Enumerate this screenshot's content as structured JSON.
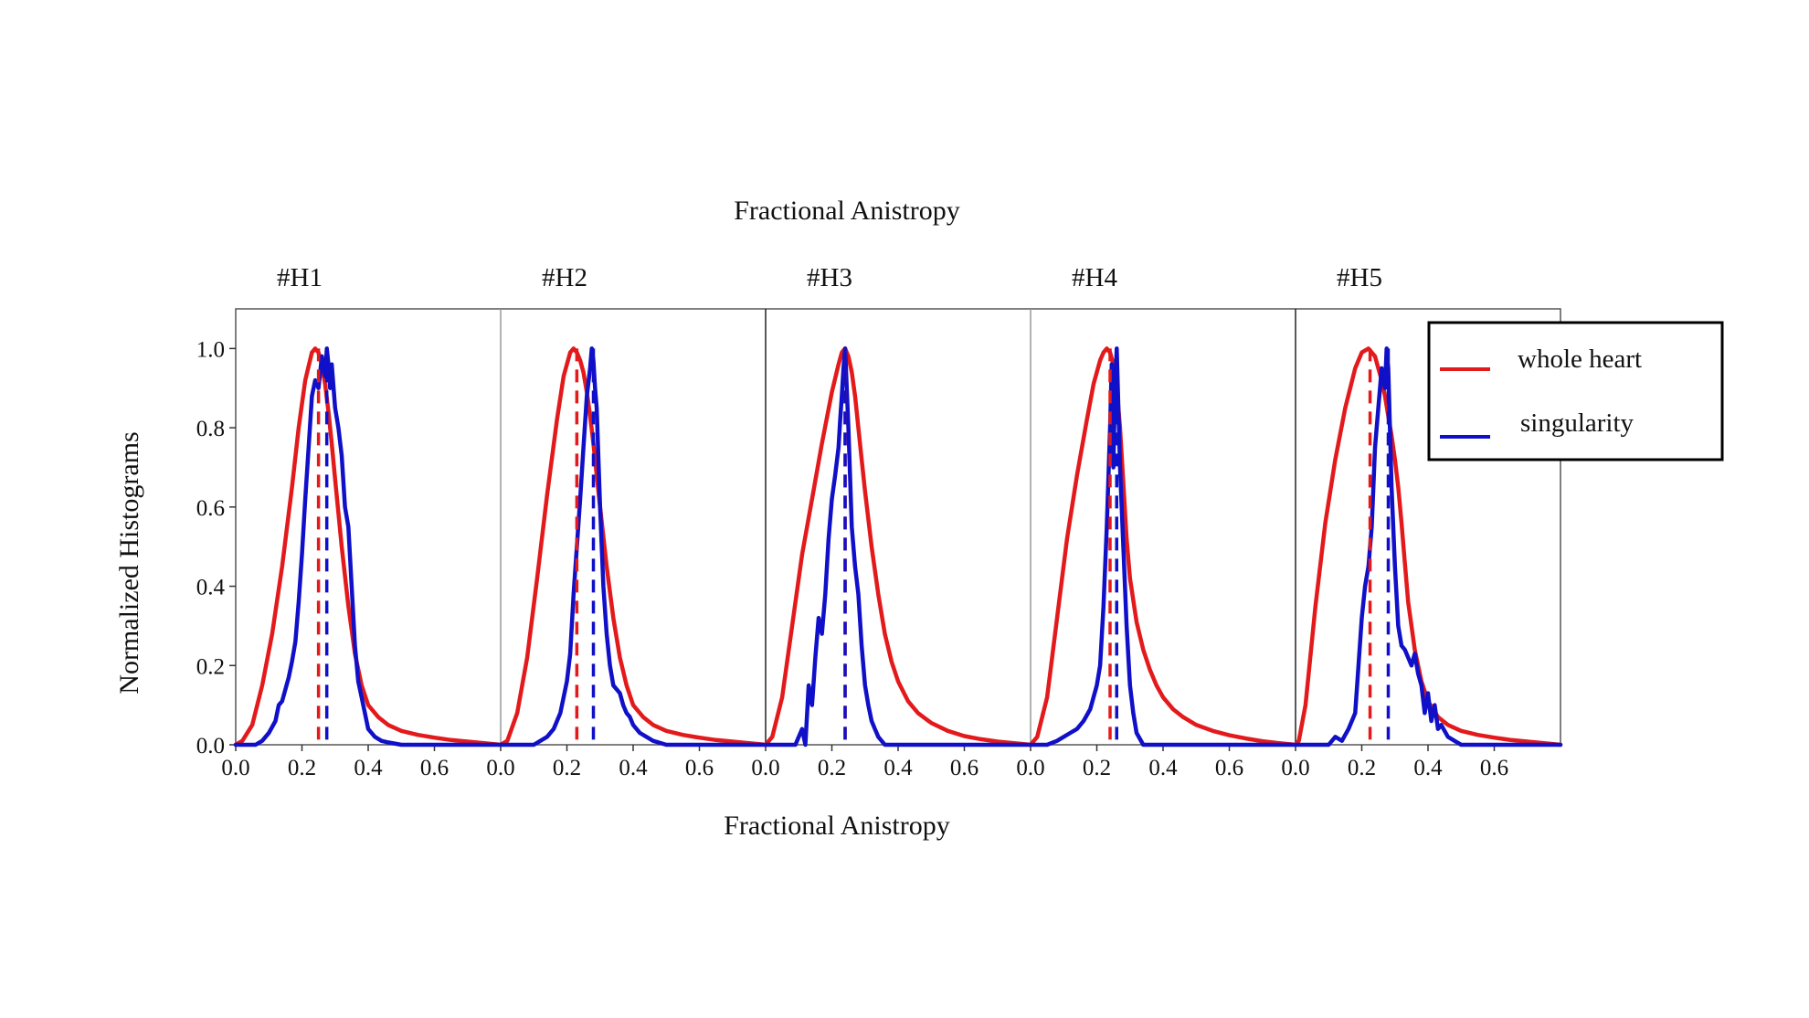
{
  "chart_data": {
    "type": "line",
    "top_title": "Fractional  Anistropy",
    "xlabel": "Fractional  Anistropy",
    "ylabel": "Normalized Histograms",
    "xlim": [
      0.0,
      0.8
    ],
    "ylim": [
      0.0,
      1.1
    ],
    "x_ticks": [
      "0.0",
      "0.2",
      "0.4",
      "0.6"
    ],
    "y_ticks": [
      "0.0",
      "0.2",
      "0.4",
      "0.6",
      "0.8",
      "1.0"
    ],
    "legend": {
      "position": "top-right",
      "entries": [
        {
          "label": "whole heart",
          "color": "#e31a1c"
        },
        {
          "label": "singularity",
          "color": "#1010c8"
        }
      ]
    },
    "colors": {
      "whole_heart": "#e31a1c",
      "singularity": "#1010c8"
    },
    "panels": [
      {
        "title": "#H1",
        "vlines": {
          "whole_heart": 0.25,
          "singularity": 0.275
        },
        "series": [
          {
            "name": "whole heart",
            "x": [
              0.0,
              0.02,
              0.05,
              0.08,
              0.11,
              0.14,
              0.17,
              0.19,
              0.21,
              0.23,
              0.24,
              0.25,
              0.26,
              0.27,
              0.28,
              0.29,
              0.3,
              0.32,
              0.34,
              0.36,
              0.38,
              0.4,
              0.43,
              0.46,
              0.5,
              0.55,
              0.6,
              0.65,
              0.7,
              0.75,
              0.8
            ],
            "y": [
              0.0,
              0.01,
              0.05,
              0.15,
              0.28,
              0.45,
              0.65,
              0.8,
              0.92,
              0.99,
              1.0,
              0.99,
              0.96,
              0.91,
              0.84,
              0.76,
              0.67,
              0.5,
              0.35,
              0.23,
              0.15,
              0.1,
              0.07,
              0.05,
              0.035,
              0.025,
              0.018,
              0.012,
              0.008,
              0.004,
              0.0
            ]
          },
          {
            "name": "singularity",
            "x": [
              0.0,
              0.06,
              0.08,
              0.1,
              0.12,
              0.13,
              0.14,
              0.15,
              0.16,
              0.17,
              0.18,
              0.19,
              0.2,
              0.21,
              0.22,
              0.23,
              0.24,
              0.25,
              0.26,
              0.27,
              0.275,
              0.28,
              0.285,
              0.29,
              0.3,
              0.31,
              0.32,
              0.33,
              0.34,
              0.35,
              0.36,
              0.37,
              0.38,
              0.39,
              0.4,
              0.42,
              0.44,
              0.46,
              0.5,
              0.8
            ],
            "y": [
              0.0,
              0.0,
              0.01,
              0.03,
              0.06,
              0.1,
              0.11,
              0.14,
              0.17,
              0.21,
              0.26,
              0.36,
              0.48,
              0.62,
              0.75,
              0.88,
              0.92,
              0.9,
              0.98,
              0.93,
              1.0,
              0.96,
              0.9,
              0.96,
              0.85,
              0.8,
              0.73,
              0.6,
              0.55,
              0.4,
              0.25,
              0.16,
              0.12,
              0.08,
              0.04,
              0.02,
              0.01,
              0.006,
              0.0,
              0.0
            ]
          }
        ]
      },
      {
        "title": "#H2",
        "vlines": {
          "whole_heart": 0.23,
          "singularity": 0.28
        },
        "series": [
          {
            "name": "whole heart",
            "x": [
              0.0,
              0.02,
              0.05,
              0.08,
              0.11,
              0.14,
              0.17,
              0.19,
              0.21,
              0.22,
              0.23,
              0.24,
              0.25,
              0.26,
              0.27,
              0.28,
              0.29,
              0.3,
              0.32,
              0.34,
              0.36,
              0.38,
              0.4,
              0.43,
              0.46,
              0.5,
              0.55,
              0.6,
              0.65,
              0.7,
              0.75,
              0.8
            ],
            "y": [
              0.0,
              0.01,
              0.08,
              0.22,
              0.42,
              0.63,
              0.82,
              0.93,
              0.99,
              1.0,
              0.99,
              0.97,
              0.94,
              0.89,
              0.83,
              0.76,
              0.68,
              0.6,
              0.45,
              0.32,
              0.22,
              0.15,
              0.1,
              0.07,
              0.05,
              0.035,
              0.025,
              0.018,
              0.012,
              0.008,
              0.004,
              0.0
            ]
          },
          {
            "name": "singularity",
            "x": [
              0.0,
              0.1,
              0.12,
              0.14,
              0.16,
              0.18,
              0.2,
              0.21,
              0.22,
              0.23,
              0.24,
              0.25,
              0.26,
              0.27,
              0.275,
              0.28,
              0.285,
              0.29,
              0.3,
              0.31,
              0.32,
              0.33,
              0.34,
              0.35,
              0.36,
              0.37,
              0.38,
              0.39,
              0.4,
              0.42,
              0.44,
              0.46,
              0.5,
              0.8
            ],
            "y": [
              0.0,
              0.0,
              0.01,
              0.02,
              0.04,
              0.08,
              0.16,
              0.23,
              0.38,
              0.5,
              0.62,
              0.75,
              0.88,
              0.95,
              1.0,
              0.97,
              0.9,
              0.85,
              0.6,
              0.4,
              0.28,
              0.2,
              0.15,
              0.14,
              0.13,
              0.1,
              0.08,
              0.07,
              0.05,
              0.03,
              0.02,
              0.01,
              0.0,
              0.0
            ]
          }
        ]
      },
      {
        "title": "#H3",
        "vlines": {
          "whole_heart": 0.24,
          "singularity": 0.24
        },
        "series": [
          {
            "name": "whole heart",
            "x": [
              0.0,
              0.02,
              0.05,
              0.08,
              0.11,
              0.14,
              0.17,
              0.2,
              0.22,
              0.23,
              0.24,
              0.25,
              0.26,
              0.27,
              0.28,
              0.29,
              0.3,
              0.32,
              0.34,
              0.36,
              0.38,
              0.4,
              0.43,
              0.46,
              0.5,
              0.55,
              0.6,
              0.65,
              0.7,
              0.75,
              0.8
            ],
            "y": [
              0.0,
              0.02,
              0.12,
              0.3,
              0.48,
              0.62,
              0.76,
              0.89,
              0.96,
              0.99,
              1.0,
              0.98,
              0.94,
              0.88,
              0.8,
              0.72,
              0.64,
              0.5,
              0.38,
              0.28,
              0.21,
              0.16,
              0.11,
              0.08,
              0.055,
              0.035,
              0.022,
              0.014,
              0.008,
              0.004,
              0.0
            ]
          },
          {
            "name": "singularity",
            "x": [
              0.0,
              0.09,
              0.11,
              0.12,
              0.13,
              0.14,
              0.15,
              0.16,
              0.17,
              0.18,
              0.19,
              0.2,
              0.21,
              0.22,
              0.225,
              0.23,
              0.235,
              0.24,
              0.245,
              0.25,
              0.26,
              0.27,
              0.28,
              0.29,
              0.3,
              0.31,
              0.32,
              0.33,
              0.34,
              0.36,
              0.8
            ],
            "y": [
              0.0,
              0.0,
              0.04,
              0.0,
              0.15,
              0.1,
              0.22,
              0.32,
              0.28,
              0.38,
              0.52,
              0.62,
              0.68,
              0.75,
              0.82,
              0.88,
              0.95,
              1.0,
              0.9,
              0.8,
              0.55,
              0.45,
              0.38,
              0.25,
              0.15,
              0.1,
              0.06,
              0.04,
              0.02,
              0.0,
              0.0
            ]
          }
        ]
      },
      {
        "title": "#H4",
        "vlines": {
          "whole_heart": 0.24,
          "singularity": 0.26
        },
        "series": [
          {
            "name": "whole heart",
            "x": [
              0.0,
              0.02,
              0.05,
              0.08,
              0.11,
              0.14,
              0.17,
              0.19,
              0.21,
              0.22,
              0.23,
              0.24,
              0.25,
              0.26,
              0.27,
              0.28,
              0.29,
              0.3,
              0.32,
              0.34,
              0.36,
              0.38,
              0.4,
              0.43,
              0.46,
              0.5,
              0.55,
              0.6,
              0.65,
              0.7,
              0.75,
              0.8
            ],
            "y": [
              0.0,
              0.02,
              0.12,
              0.32,
              0.52,
              0.68,
              0.82,
              0.91,
              0.97,
              0.99,
              1.0,
              0.99,
              0.96,
              0.9,
              0.8,
              0.66,
              0.52,
              0.42,
              0.31,
              0.24,
              0.19,
              0.15,
              0.12,
              0.09,
              0.07,
              0.05,
              0.035,
              0.024,
              0.016,
              0.009,
              0.004,
              0.0
            ]
          },
          {
            "name": "singularity",
            "x": [
              0.0,
              0.05,
              0.08,
              0.1,
              0.12,
              0.14,
              0.16,
              0.18,
              0.2,
              0.21,
              0.22,
              0.23,
              0.24,
              0.245,
              0.25,
              0.255,
              0.26,
              0.265,
              0.27,
              0.28,
              0.29,
              0.3,
              0.31,
              0.32,
              0.34,
              0.8
            ],
            "y": [
              0.0,
              0.0,
              0.01,
              0.02,
              0.03,
              0.04,
              0.06,
              0.09,
              0.15,
              0.2,
              0.35,
              0.55,
              0.8,
              0.96,
              0.7,
              0.9,
              1.0,
              0.85,
              0.7,
              0.5,
              0.3,
              0.15,
              0.08,
              0.03,
              0.0,
              0.0
            ]
          }
        ]
      },
      {
        "title": "#H5",
        "vlines": {
          "whole_heart": 0.225,
          "singularity": 0.28
        },
        "series": [
          {
            "name": "whole heart",
            "x": [
              0.0,
              0.01,
              0.03,
              0.06,
              0.09,
              0.12,
              0.15,
              0.18,
              0.2,
              0.22,
              0.23,
              0.24,
              0.25,
              0.26,
              0.27,
              0.28,
              0.29,
              0.3,
              0.31,
              0.32,
              0.33,
              0.34,
              0.36,
              0.38,
              0.4,
              0.43,
              0.46,
              0.5,
              0.55,
              0.6,
              0.65,
              0.7,
              0.75,
              0.8
            ],
            "y": [
              0.0,
              0.01,
              0.1,
              0.35,
              0.56,
              0.72,
              0.85,
              0.95,
              0.99,
              1.0,
              0.99,
              0.98,
              0.95,
              0.92,
              0.88,
              0.83,
              0.78,
              0.72,
              0.65,
              0.56,
              0.46,
              0.36,
              0.24,
              0.16,
              0.11,
              0.07,
              0.05,
              0.035,
              0.025,
              0.018,
              0.012,
              0.008,
              0.004,
              0.0
            ]
          },
          {
            "name": "singularity",
            "x": [
              0.0,
              0.1,
              0.12,
              0.14,
              0.16,
              0.18,
              0.19,
              0.2,
              0.21,
              0.22,
              0.23,
              0.24,
              0.25,
              0.26,
              0.27,
              0.275,
              0.28,
              0.285,
              0.29,
              0.3,
              0.31,
              0.32,
              0.33,
              0.34,
              0.35,
              0.36,
              0.37,
              0.38,
              0.39,
              0.4,
              0.41,
              0.42,
              0.43,
              0.44,
              0.46,
              0.48,
              0.5,
              0.8
            ],
            "y": [
              0.0,
              0.0,
              0.02,
              0.01,
              0.04,
              0.08,
              0.2,
              0.32,
              0.4,
              0.45,
              0.55,
              0.75,
              0.85,
              0.95,
              0.9,
              1.0,
              0.95,
              0.8,
              0.65,
              0.45,
              0.3,
              0.25,
              0.24,
              0.22,
              0.2,
              0.23,
              0.18,
              0.15,
              0.08,
              0.13,
              0.06,
              0.1,
              0.04,
              0.05,
              0.02,
              0.01,
              0.0,
              0.0
            ]
          }
        ]
      }
    ]
  }
}
